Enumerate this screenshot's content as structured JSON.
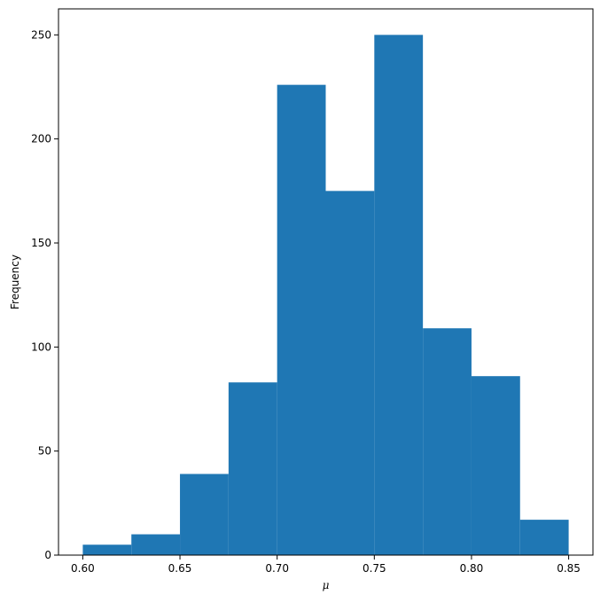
{
  "chart_data": {
    "type": "bar",
    "title": "",
    "xlabel": "μ",
    "ylabel": "Frequency",
    "bin_edges": [
      0.6,
      0.625,
      0.65,
      0.675,
      0.7,
      0.725,
      0.75,
      0.775,
      0.8,
      0.825,
      0.85
    ],
    "values": [
      5,
      10,
      39,
      83,
      226,
      175,
      250,
      109,
      86,
      17
    ],
    "xlim": [
      0.5875,
      0.8625
    ],
    "ylim": [
      0,
      262.5
    ],
    "x_ticks": [
      0.6,
      0.65,
      0.7,
      0.75,
      0.8,
      0.85
    ],
    "x_tick_labels": [
      "0.60",
      "0.65",
      "0.70",
      "0.75",
      "0.80",
      "0.85"
    ],
    "y_ticks": [
      0,
      50,
      100,
      150,
      200,
      250
    ],
    "y_tick_labels": [
      "0",
      "50",
      "100",
      "150",
      "200",
      "250"
    ],
    "bar_color": "#1f77b4",
    "grid": false,
    "legend": "none"
  }
}
